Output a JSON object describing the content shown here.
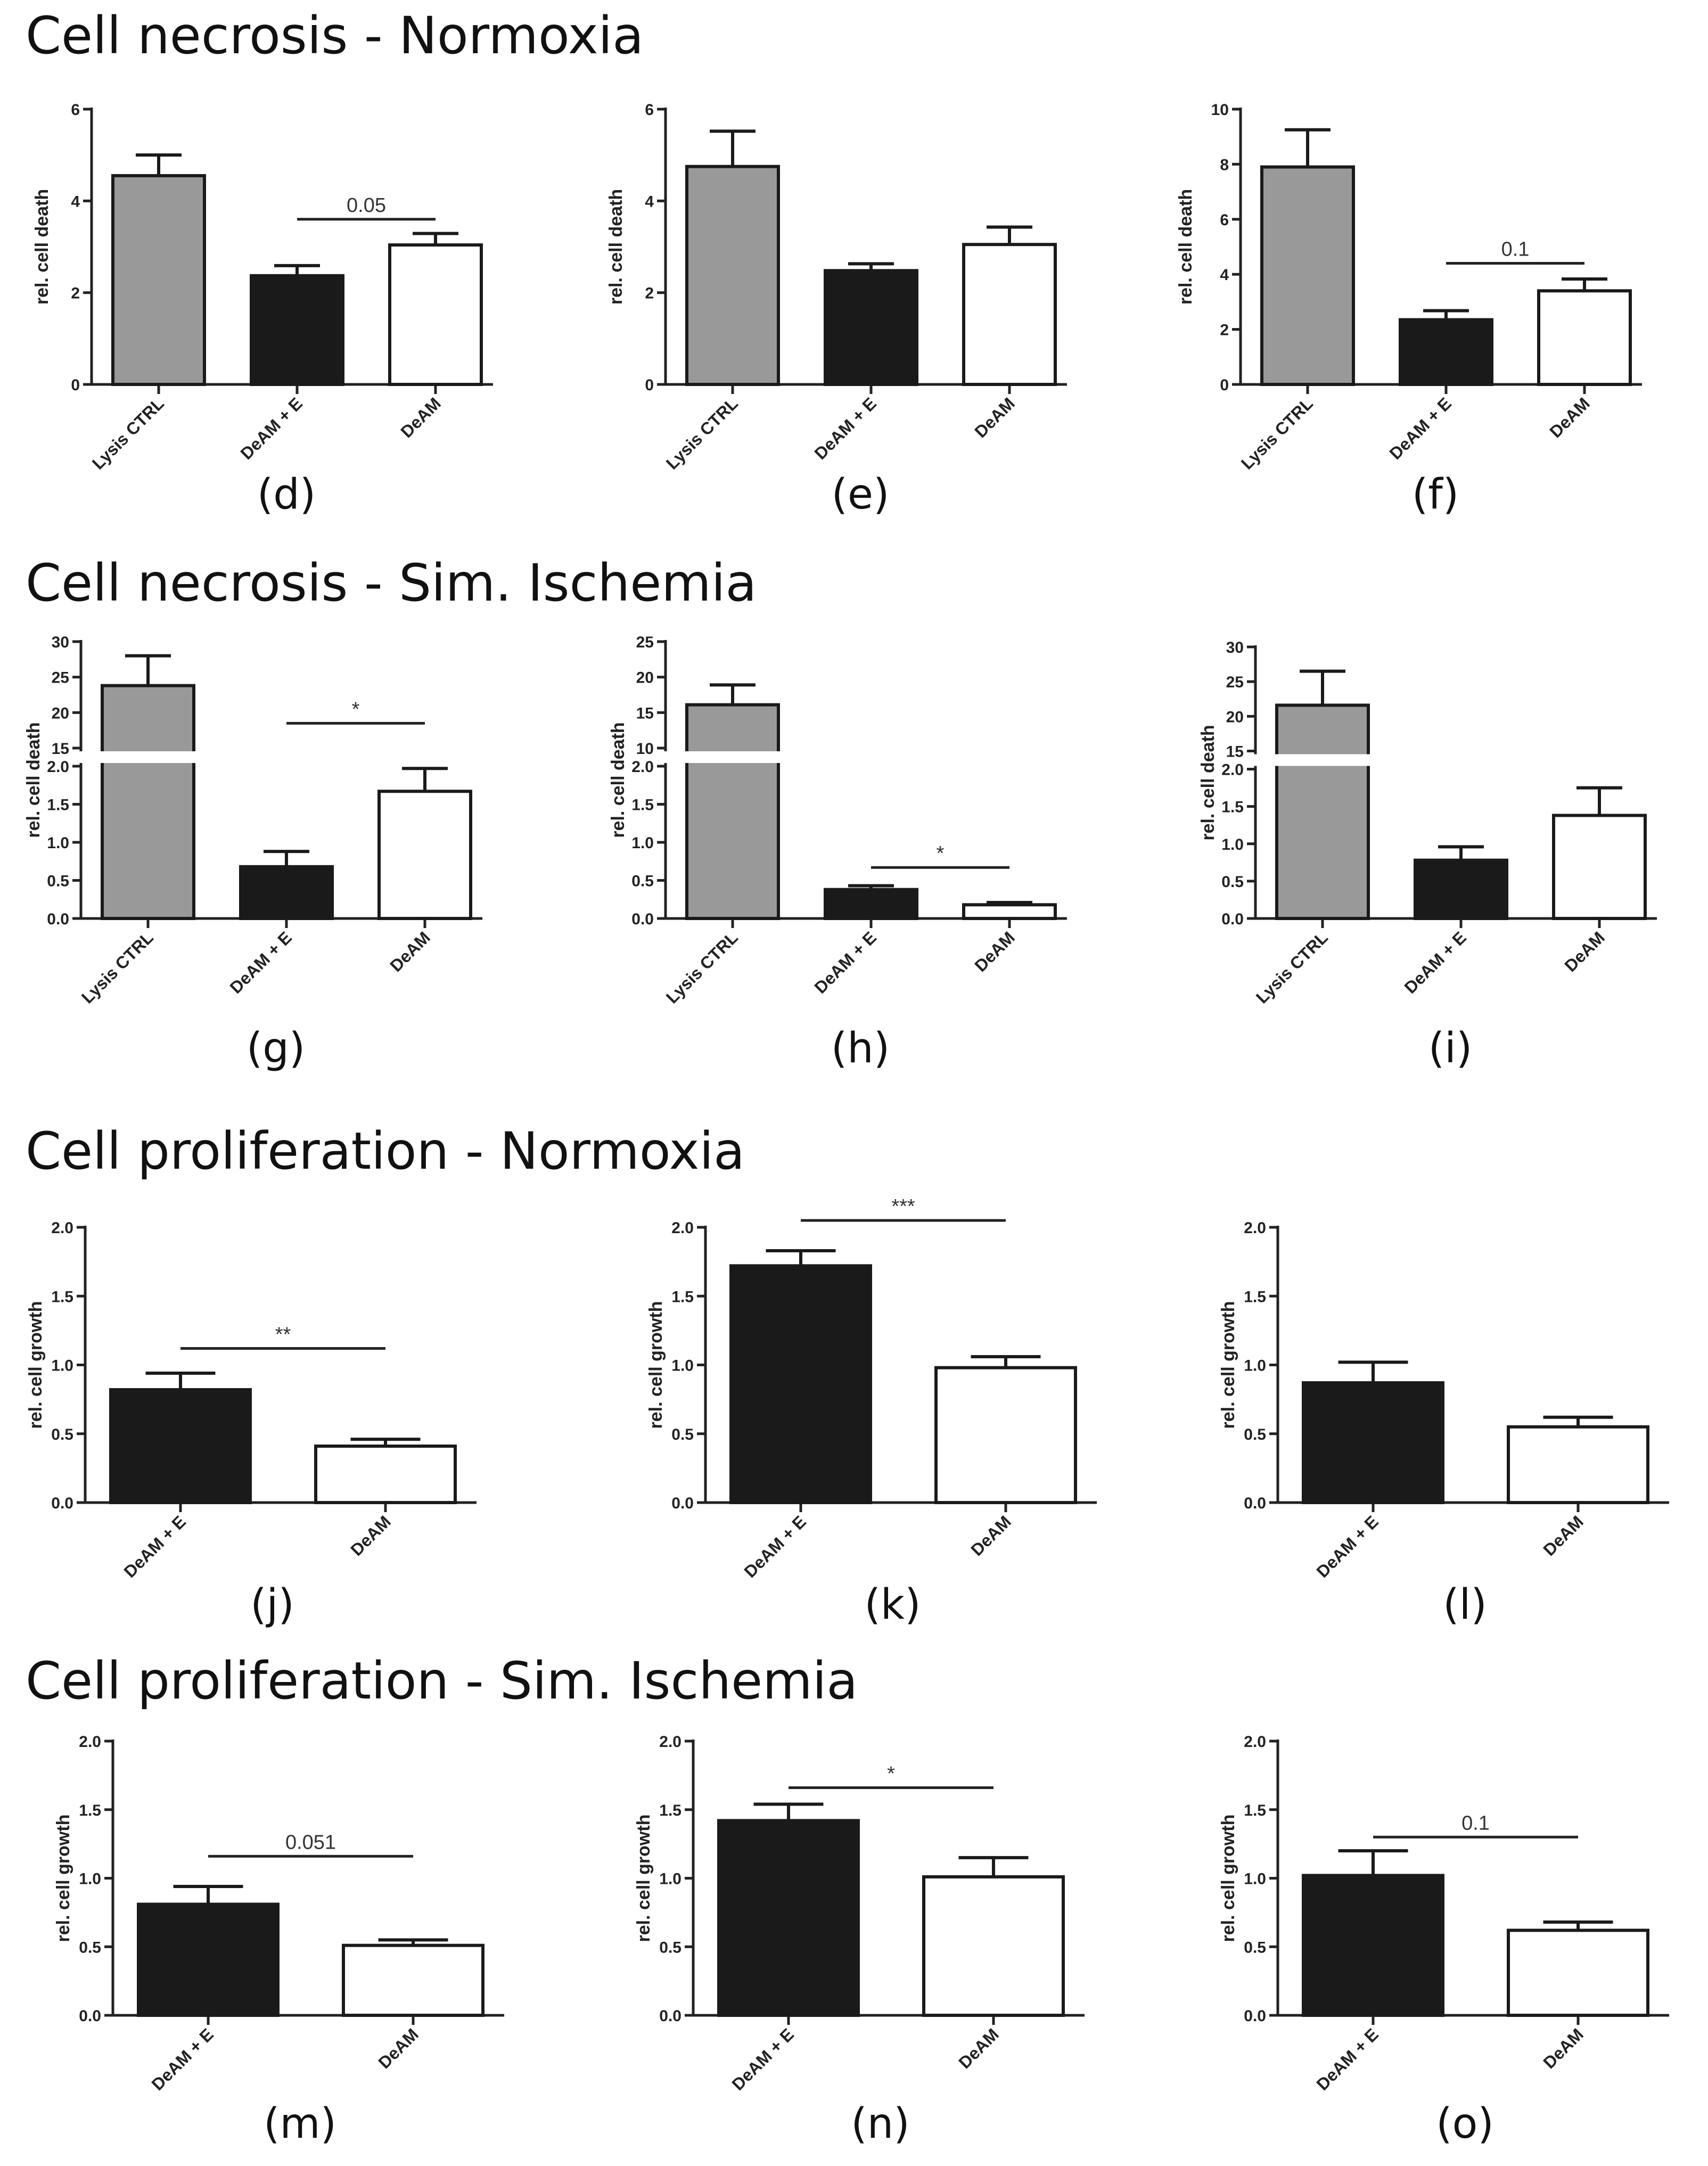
{
  "sections": [
    "Cell necrosis - Normoxia",
    "Cell necrosis - Sim. Ischemia",
    "Cell proliferation - Normoxia",
    "Cell proliferation - Sim. Ischemia"
  ],
  "colors": {
    "lysis_ctrl": "#999999",
    "deam_e": "#1a1a1a",
    "deam": "#ffffff",
    "axis": "#222222"
  },
  "chart_data": [
    {
      "type": "bar",
      "panel": "(d)",
      "section": 0,
      "categories": [
        "Lysis CTRL",
        "DeAM + E",
        "DeAM"
      ],
      "values": [
        4.55,
        2.37,
        3.04
      ],
      "errors": [
        0.45,
        0.22,
        0.25
      ],
      "ylabel": "rel. cell death",
      "ylim": [
        0,
        6
      ],
      "yticks": [
        0,
        2,
        4,
        6
      ],
      "significance": {
        "from": 1,
        "to": 2,
        "label": "0.05",
        "y": 3.6
      }
    },
    {
      "type": "bar",
      "panel": "(e)",
      "section": 0,
      "categories": [
        "Lysis CTRL",
        "DeAM + E",
        "DeAM"
      ],
      "values": [
        4.75,
        2.48,
        3.05
      ],
      "errors": [
        0.77,
        0.15,
        0.38
      ],
      "ylabel": "rel. cell death",
      "ylim": [
        0,
        6
      ],
      "yticks": [
        0,
        2,
        4,
        6
      ]
    },
    {
      "type": "bar",
      "panel": "(f)",
      "section": 0,
      "categories": [
        "Lysis CTRL",
        "DeAM + E",
        "DeAM"
      ],
      "values": [
        7.9,
        2.35,
        3.4
      ],
      "errors": [
        1.35,
        0.33,
        0.43
      ],
      "ylabel": "rel. cell death",
      "ylim": [
        0,
        10
      ],
      "yticks": [
        0,
        2,
        4,
        6,
        8,
        10
      ],
      "significance": {
        "from": 1,
        "to": 2,
        "label": "0.1",
        "y": 4.4
      }
    },
    {
      "type": "bar",
      "panel": "(g)",
      "section": 1,
      "categories": [
        "Lysis CTRL",
        "DeAM + E",
        "DeAM"
      ],
      "values": [
        23.8,
        0.68,
        1.67
      ],
      "errors": [
        4.2,
        0.2,
        0.3
      ],
      "ylabel": "rel. cell death",
      "broken_axis": {
        "lower": [
          0,
          2.0
        ],
        "upper": [
          15,
          30
        ]
      },
      "yticks_lower": [
        "0.0",
        "0.5",
        "1.0",
        "1.5",
        "2.0"
      ],
      "yticks_upper": [
        15,
        20,
        25,
        30
      ],
      "significance": {
        "from": 1,
        "to": 2,
        "label": "*",
        "y": 18.5
      }
    },
    {
      "type": "bar",
      "panel": "(h)",
      "section": 1,
      "categories": [
        "Lysis CTRL",
        "DeAM + E",
        "DeAM"
      ],
      "values": [
        16.1,
        0.38,
        0.18
      ],
      "errors": [
        2.8,
        0.05,
        0.03
      ],
      "ylabel": "rel. cell death",
      "broken_axis": {
        "lower": [
          0,
          2.0
        ],
        "upper": [
          10,
          25
        ]
      },
      "yticks_lower": [
        "0.0",
        "0.5",
        "1.0",
        "1.5",
        "2.0"
      ],
      "yticks_upper": [
        10,
        15,
        20,
        25
      ],
      "significance": {
        "from": 1,
        "to": 2,
        "label": "*",
        "y": 0.67
      }
    },
    {
      "type": "bar",
      "panel": "(i)",
      "section": 1,
      "categories": [
        "Lysis CTRL",
        "DeAM + E",
        "DeAM"
      ],
      "values": [
        21.6,
        0.78,
        1.38
      ],
      "errors": [
        4.9,
        0.18,
        0.37
      ],
      "ylabel": "rel. cell death",
      "broken_axis": {
        "lower": [
          0,
          2.0
        ],
        "upper": [
          15,
          30
        ]
      },
      "yticks_lower": [
        "0.0",
        "0.5",
        "1.0",
        "1.5",
        "2.0"
      ],
      "yticks_upper": [
        15,
        20,
        25,
        30
      ]
    },
    {
      "type": "bar",
      "panel": "(j)",
      "section": 2,
      "categories": [
        "DeAM + E",
        "DeAM"
      ],
      "values": [
        0.82,
        0.41
      ],
      "errors": [
        0.12,
        0.05
      ],
      "ylabel": "rel. cell growth",
      "ylim": [
        0,
        2.0
      ],
      "yticks": [
        "0.0",
        "0.5",
        "1.0",
        "1.5",
        "2.0"
      ],
      "significance": {
        "from": 0,
        "to": 1,
        "label": "**",
        "y": 1.12
      }
    },
    {
      "type": "bar",
      "panel": "(k)",
      "section": 2,
      "categories": [
        "DeAM + E",
        "DeAM"
      ],
      "values": [
        1.72,
        0.98
      ],
      "errors": [
        0.11,
        0.08
      ],
      "ylabel": "rel. cell growth",
      "ylim": [
        0,
        2.0
      ],
      "yticks": [
        "0.0",
        "0.5",
        "1.0",
        "1.5",
        "2.0"
      ],
      "significance": {
        "from": 0,
        "to": 1,
        "label": "***",
        "y": 2.05
      }
    },
    {
      "type": "bar",
      "panel": "(l)",
      "section": 2,
      "categories": [
        "DeAM + E",
        "DeAM"
      ],
      "values": [
        0.87,
        0.55
      ],
      "errors": [
        0.15,
        0.07
      ],
      "ylabel": "rel. cell growth",
      "ylim": [
        0,
        2.0
      ],
      "yticks": [
        "0.0",
        "0.5",
        "1.0",
        "1.5",
        "2.0"
      ]
    },
    {
      "type": "bar",
      "panel": "(m)",
      "section": 3,
      "categories": [
        "DeAM + E",
        "DeAM"
      ],
      "values": [
        0.81,
        0.51
      ],
      "errors": [
        0.13,
        0.04
      ],
      "ylabel": "rel. cell growth",
      "ylim": [
        0,
        2.0
      ],
      "yticks": [
        "0.0",
        "0.5",
        "1.0",
        "1.5",
        "2.0"
      ],
      "significance": {
        "from": 0,
        "to": 1,
        "label": "0.051",
        "y": 1.16
      }
    },
    {
      "type": "bar",
      "panel": "(n)",
      "section": 3,
      "categories": [
        "DeAM + E",
        "DeAM"
      ],
      "values": [
        1.42,
        1.01
      ],
      "errors": [
        0.12,
        0.14
      ],
      "ylabel": "rel. cell growth",
      "ylim": [
        0,
        2.0
      ],
      "yticks": [
        "0.0",
        "0.5",
        "1.0",
        "1.5",
        "2.0"
      ],
      "significance": {
        "from": 0,
        "to": 1,
        "label": "*",
        "y": 1.66
      }
    },
    {
      "type": "bar",
      "panel": "(o)",
      "section": 3,
      "categories": [
        "DeAM + E",
        "DeAM"
      ],
      "values": [
        1.02,
        0.62
      ],
      "errors": [
        0.18,
        0.06
      ],
      "ylabel": "rel. cell growth",
      "ylim": [
        0,
        2.0
      ],
      "yticks": [
        "0.0",
        "0.5",
        "1.0",
        "1.5",
        "2.0"
      ],
      "significance": {
        "from": 0,
        "to": 1,
        "label": "0.1",
        "y": 1.3
      }
    }
  ]
}
